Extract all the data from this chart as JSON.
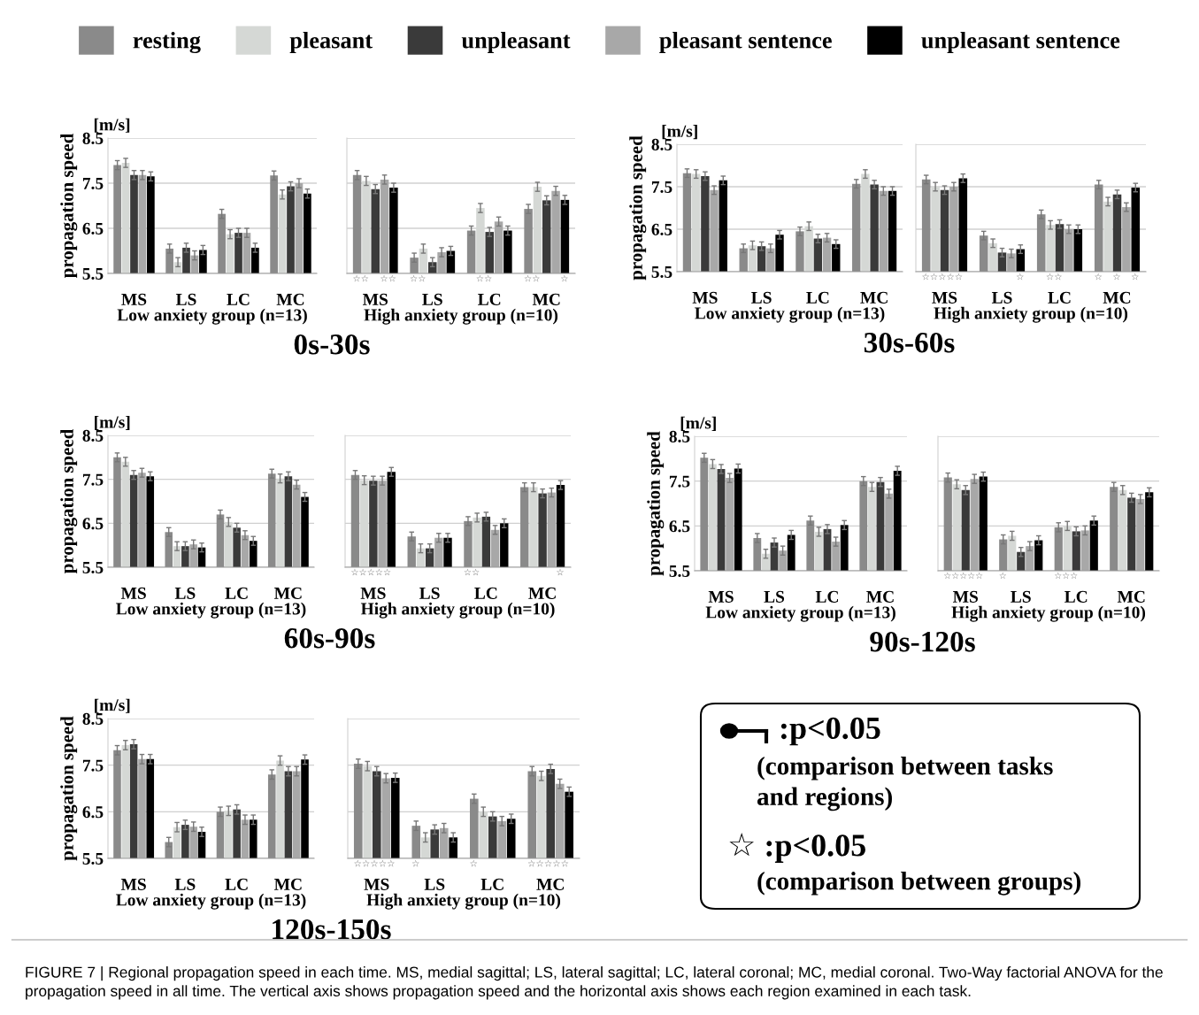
{
  "chart_data": [
    {
      "type": "bar",
      "title": "0s-30s",
      "xlabel": "Low anxiety group (n=13)",
      "ylabel": "propagation speed",
      "annotations": [
        "[m/s]"
      ],
      "categories": [
        "MS",
        "LS",
        "LC",
        "MC"
      ],
      "ylim": [
        5.5,
        8.5
      ],
      "yticks": [
        5.5,
        6.5,
        7.5,
        8.5
      ],
      "grid": "y",
      "legend": "top",
      "series": [
        {
          "name": "resting",
          "color": "#8a8a8a",
          "values": [
            7.9,
            6.05,
            6.82,
            7.67
          ],
          "errors": [
            0.1,
            0.1,
            0.1,
            0.1
          ]
        },
        {
          "name": "pleasant",
          "color": "#d5d8d5",
          "values": [
            7.95,
            5.75,
            6.37,
            7.25
          ],
          "errors": [
            0.1,
            0.1,
            0.1,
            0.1
          ]
        },
        {
          "name": "unpleasant",
          "color": "#3a3a3a",
          "values": [
            7.68,
            6.07,
            6.4,
            7.43
          ],
          "errors": [
            0.1,
            0.1,
            0.1,
            0.1
          ]
        },
        {
          "name": "pleasant sentence",
          "color": "#a8a8a8",
          "values": [
            7.68,
            5.9,
            6.4,
            7.5
          ],
          "errors": [
            0.1,
            0.1,
            0.1,
            0.1
          ]
        },
        {
          "name": "unpleasant sentence",
          "color": "#000000",
          "values": [
            7.65,
            6.02,
            6.07,
            7.27
          ],
          "errors": [
            0.1,
            0.1,
            0.1,
            0.1
          ]
        }
      ]
    },
    {
      "type": "bar",
      "xlabel": "High anxiety group (n=10)",
      "categories": [
        "MS",
        "LS",
        "LC",
        "MC"
      ],
      "ylim": [
        5.5,
        8.5
      ],
      "yticks": [
        5.5,
        6.5,
        7.5,
        8.5
      ],
      "grid": "y",
      "tick_labels": "x",
      "annotations": [
        "☆☆",
        "☆☆",
        "☆☆",
        "☆☆",
        "☆☆",
        "☆"
      ],
      "series": [
        {
          "color": "#8a8a8a",
          "values": [
            7.68,
            5.85,
            6.45,
            6.93
          ],
          "errors": [
            0.1,
            0.1,
            0.1,
            0.1
          ]
        },
        {
          "color": "#d5d8d5",
          "values": [
            7.55,
            6.05,
            6.95,
            7.42
          ],
          "errors": [
            0.1,
            0.1,
            0.1,
            0.1
          ]
        },
        {
          "color": "#3a3a3a",
          "values": [
            7.37,
            5.75,
            6.42,
            7.12
          ],
          "errors": [
            0.1,
            0.1,
            0.1,
            0.1
          ]
        },
        {
          "color": "#a8a8a8",
          "values": [
            7.58,
            5.97,
            6.65,
            7.33
          ],
          "errors": [
            0.1,
            0.1,
            0.1,
            0.1
          ]
        },
        {
          "color": "#000000",
          "values": [
            7.4,
            6.0,
            6.45,
            7.13
          ],
          "errors": [
            0.1,
            0.1,
            0.1,
            0.1
          ]
        }
      ]
    },
    {
      "type": "bar",
      "title": "30s-60s",
      "xlabel": "Low anxiety group (n=13)",
      "ylabel": "propagation speed",
      "annotations": [
        "[m/s]"
      ],
      "categories": [
        "MS",
        "LS",
        "LC",
        "MC"
      ],
      "ylim": [
        5.5,
        8.5
      ],
      "yticks": [
        5.5,
        6.5,
        7.5,
        8.5
      ],
      "grid": "y",
      "series": [
        {
          "color": "#8a8a8a",
          "values": [
            7.82,
            6.05,
            6.45,
            7.57
          ],
          "errors": [
            0.1,
            0.1,
            0.1,
            0.1
          ]
        },
        {
          "color": "#d5d8d5",
          "values": [
            7.8,
            6.12,
            6.57,
            7.8
          ],
          "errors": [
            0.1,
            0.1,
            0.1,
            0.1
          ]
        },
        {
          "color": "#3a3a3a",
          "values": [
            7.75,
            6.1,
            6.28,
            7.55
          ],
          "errors": [
            0.1,
            0.1,
            0.1,
            0.1
          ]
        },
        {
          "color": "#a8a8a8",
          "values": [
            7.42,
            6.05,
            6.3,
            7.4
          ],
          "errors": [
            0.1,
            0.1,
            0.1,
            0.1
          ]
        },
        {
          "color": "#000000",
          "values": [
            7.65,
            6.37,
            6.15,
            7.4
          ],
          "errors": [
            0.1,
            0.1,
            0.1,
            0.1
          ]
        }
      ]
    },
    {
      "type": "bar",
      "xlabel": "High anxiety group (n=10)",
      "categories": [
        "MS",
        "LS",
        "LC",
        "MC"
      ],
      "ylim": [
        5.5,
        8.5
      ],
      "yticks": [
        5.5,
        6.5,
        7.5,
        8.5
      ],
      "grid": "y",
      "tick_labels": "x",
      "annotations": [
        "☆☆☆☆☆",
        "☆",
        "☆☆",
        "☆",
        "☆",
        "☆"
      ],
      "series": [
        {
          "color": "#8a8a8a",
          "values": [
            7.67,
            6.35,
            6.85,
            7.55
          ],
          "errors": [
            0.1,
            0.1,
            0.1,
            0.1
          ]
        },
        {
          "color": "#d5d8d5",
          "values": [
            7.5,
            6.17,
            6.6,
            7.15
          ],
          "errors": [
            0.1,
            0.1,
            0.1,
            0.1
          ]
        },
        {
          "color": "#3a3a3a",
          "values": [
            7.42,
            5.95,
            6.62,
            7.32
          ],
          "errors": [
            0.1,
            0.1,
            0.1,
            0.1
          ]
        },
        {
          "color": "#a8a8a8",
          "values": [
            7.5,
            5.93,
            6.5,
            7.02
          ],
          "errors": [
            0.1,
            0.1,
            0.1,
            0.1
          ]
        },
        {
          "color": "#000000",
          "values": [
            7.7,
            6.03,
            6.5,
            7.48
          ],
          "errors": [
            0.1,
            0.1,
            0.1,
            0.1
          ]
        }
      ]
    },
    {
      "type": "bar",
      "title": "60s-90s",
      "xlabel": "Low anxiety group (n=13)",
      "ylabel": "propagation speed",
      "annotations": [
        "[m/s]"
      ],
      "categories": [
        "MS",
        "LS",
        "LC",
        "MC"
      ],
      "ylim": [
        5.5,
        8.5
      ],
      "yticks": [
        5.5,
        6.5,
        7.5,
        8.5
      ],
      "grid": "y",
      "series": [
        {
          "color": "#8a8a8a",
          "values": [
            8.0,
            6.3,
            6.7,
            7.63
          ],
          "errors": [
            0.1,
            0.1,
            0.1,
            0.1
          ]
        },
        {
          "color": "#d5d8d5",
          "values": [
            7.9,
            5.98,
            6.53,
            7.52
          ],
          "errors": [
            0.1,
            0.1,
            0.1,
            0.1
          ]
        },
        {
          "color": "#3a3a3a",
          "values": [
            7.6,
            5.98,
            6.4,
            7.57
          ],
          "errors": [
            0.1,
            0.1,
            0.1,
            0.1
          ]
        },
        {
          "color": "#a8a8a8",
          "values": [
            7.65,
            6.02,
            6.23,
            7.38
          ],
          "errors": [
            0.1,
            0.1,
            0.1,
            0.1
          ]
        },
        {
          "color": "#000000",
          "values": [
            7.57,
            5.95,
            6.1,
            7.1
          ],
          "errors": [
            0.1,
            0.1,
            0.1,
            0.1
          ]
        }
      ]
    },
    {
      "type": "bar",
      "xlabel": "High anxiety group (n=10)",
      "categories": [
        "MS",
        "LS",
        "LC",
        "MC"
      ],
      "ylim": [
        5.5,
        8.5
      ],
      "yticks": [
        5.5,
        6.5,
        7.5,
        8.5
      ],
      "grid": "y",
      "tick_labels": "x",
      "annotations": [
        "☆☆☆☆☆",
        "☆☆",
        "☆"
      ],
      "series": [
        {
          "color": "#8a8a8a",
          "values": [
            7.6,
            6.2,
            6.55,
            7.32
          ],
          "errors": [
            0.1,
            0.1,
            0.1,
            0.1
          ]
        },
        {
          "color": "#d5d8d5",
          "values": [
            7.48,
            5.93,
            6.63,
            7.32
          ],
          "errors": [
            0.1,
            0.1,
            0.1,
            0.1
          ]
        },
        {
          "color": "#3a3a3a",
          "values": [
            7.47,
            5.93,
            6.65,
            7.18
          ],
          "errors": [
            0.1,
            0.1,
            0.1,
            0.1
          ]
        },
        {
          "color": "#a8a8a8",
          "values": [
            7.47,
            6.17,
            6.35,
            7.2
          ],
          "errors": [
            0.1,
            0.1,
            0.1,
            0.1
          ]
        },
        {
          "color": "#000000",
          "values": [
            7.67,
            6.17,
            6.5,
            7.37
          ],
          "errors": [
            0.1,
            0.1,
            0.1,
            0.1
          ]
        }
      ]
    },
    {
      "type": "bar",
      "title": "90s-120s",
      "xlabel": "Low anxiety group (n=13)",
      "ylabel": "propagation speed",
      "annotations": [
        "[m/s]"
      ],
      "categories": [
        "MS",
        "LS",
        "LC",
        "MC"
      ],
      "ylim": [
        5.5,
        8.5
      ],
      "yticks": [
        5.5,
        6.5,
        7.5,
        8.5
      ],
      "grid": "y",
      "series": [
        {
          "color": "#8a8a8a",
          "values": [
            8.02,
            6.23,
            6.62,
            7.5
          ],
          "errors": [
            0.1,
            0.1,
            0.1,
            0.1
          ]
        },
        {
          "color": "#d5d8d5",
          "values": [
            7.88,
            5.88,
            6.37,
            7.37
          ],
          "errors": [
            0.1,
            0.1,
            0.1,
            0.1
          ]
        },
        {
          "color": "#3a3a3a",
          "values": [
            7.77,
            6.13,
            6.43,
            7.48
          ],
          "errors": [
            0.1,
            0.1,
            0.1,
            0.1
          ]
        },
        {
          "color": "#a8a8a8",
          "values": [
            7.57,
            5.95,
            6.15,
            7.22
          ],
          "errors": [
            0.1,
            0.1,
            0.1,
            0.1
          ]
        },
        {
          "color": "#000000",
          "values": [
            7.78,
            6.3,
            6.52,
            7.73
          ],
          "errors": [
            0.1,
            0.1,
            0.1,
            0.1
          ]
        }
      ]
    },
    {
      "type": "bar",
      "xlabel": "High anxiety group (n=10)",
      "categories": [
        "MS",
        "LS",
        "LC",
        "MC"
      ],
      "ylim": [
        5.5,
        8.5
      ],
      "yticks": [
        5.5,
        6.5,
        7.5,
        8.5
      ],
      "grid": "y",
      "tick_labels": "x",
      "annotations": [
        "☆☆☆☆☆",
        "☆",
        "☆☆☆"
      ],
      "series": [
        {
          "color": "#8a8a8a",
          "values": [
            7.58,
            6.2,
            6.47,
            7.37
          ],
          "errors": [
            0.1,
            0.1,
            0.1,
            0.1
          ]
        },
        {
          "color": "#d5d8d5",
          "values": [
            7.43,
            6.28,
            6.5,
            7.3
          ],
          "errors": [
            0.1,
            0.1,
            0.1,
            0.1
          ]
        },
        {
          "color": "#3a3a3a",
          "values": [
            7.3,
            5.92,
            6.38,
            7.13
          ],
          "errors": [
            0.1,
            0.1,
            0.1,
            0.1
          ]
        },
        {
          "color": "#a8a8a8",
          "values": [
            7.55,
            6.05,
            6.4,
            7.1
          ],
          "errors": [
            0.1,
            0.1,
            0.1,
            0.1
          ]
        },
        {
          "color": "#000000",
          "values": [
            7.6,
            6.18,
            6.62,
            7.25
          ],
          "errors": [
            0.1,
            0.1,
            0.1,
            0.1
          ]
        }
      ]
    },
    {
      "type": "bar",
      "title": "120s-150s",
      "xlabel": "Low anxiety group (n=13)",
      "ylabel": "propagation speed",
      "annotations": [
        "[m/s]"
      ],
      "categories": [
        "MS",
        "LS",
        "LC",
        "MC"
      ],
      "ylim": [
        5.5,
        8.5
      ],
      "yticks": [
        5.5,
        6.5,
        7.5,
        8.5
      ],
      "grid": "y",
      "series": [
        {
          "color": "#8a8a8a",
          "values": [
            7.82,
            5.85,
            6.5,
            7.3
          ],
          "errors": [
            0.1,
            0.1,
            0.1,
            0.1
          ]
        },
        {
          "color": "#d5d8d5",
          "values": [
            7.93,
            6.17,
            6.52,
            7.6
          ],
          "errors": [
            0.1,
            0.1,
            0.1,
            0.1
          ]
        },
        {
          "color": "#3a3a3a",
          "values": [
            7.95,
            6.22,
            6.55,
            7.37
          ],
          "errors": [
            0.1,
            0.1,
            0.1,
            0.1
          ]
        },
        {
          "color": "#a8a8a8",
          "values": [
            7.63,
            6.18,
            6.33,
            7.37
          ],
          "errors": [
            0.1,
            0.1,
            0.1,
            0.1
          ]
        },
        {
          "color": "#000000",
          "values": [
            7.63,
            6.07,
            6.33,
            7.62
          ],
          "errors": [
            0.1,
            0.1,
            0.1,
            0.1
          ]
        }
      ]
    },
    {
      "type": "bar",
      "xlabel": "High anxiety group (n=10)",
      "categories": [
        "MS",
        "LS",
        "LC",
        "MC"
      ],
      "ylim": [
        5.5,
        8.5
      ],
      "yticks": [
        5.5,
        6.5,
        7.5,
        8.5
      ],
      "grid": "y",
      "tick_labels": "x",
      "annotations": [
        "☆☆☆☆☆",
        "☆",
        "☆",
        "☆☆☆☆☆"
      ],
      "series": [
        {
          "color": "#8a8a8a",
          "values": [
            7.53,
            6.2,
            6.78,
            7.37
          ],
          "errors": [
            0.1,
            0.1,
            0.1,
            0.1
          ]
        },
        {
          "color": "#d5d8d5",
          "values": [
            7.48,
            5.95,
            6.5,
            7.27
          ],
          "errors": [
            0.1,
            0.1,
            0.1,
            0.1
          ]
        },
        {
          "color": "#3a3a3a",
          "values": [
            7.37,
            6.12,
            6.4,
            7.42
          ],
          "errors": [
            0.1,
            0.1,
            0.1,
            0.1
          ]
        },
        {
          "color": "#a8a8a8",
          "values": [
            7.22,
            6.15,
            6.3,
            7.1
          ],
          "errors": [
            0.1,
            0.1,
            0.1,
            0.1
          ]
        },
        {
          "color": "#000000",
          "values": [
            7.23,
            5.95,
            6.35,
            6.93
          ],
          "errors": [
            0.1,
            0.1,
            0.1,
            0.1
          ]
        }
      ]
    },
    {
      "type": "other",
      "annotations": [
        ":p<0.05",
        "(comparison between tasks\nand regions)",
        "☆ :p<0.05",
        "(comparison between groups)",
        "FIGURE 7 | Regional propagation speed in each time. MS, medial sagittal; LS, lateral sagittal; LC, lateral coronal; MC, medial coronal. Two-Way factorial ANOVA for the propagation speed in all time. The vertical axis shows propagation speed and the horizontal axis shows each region examined in each task."
      ]
    }
  ]
}
